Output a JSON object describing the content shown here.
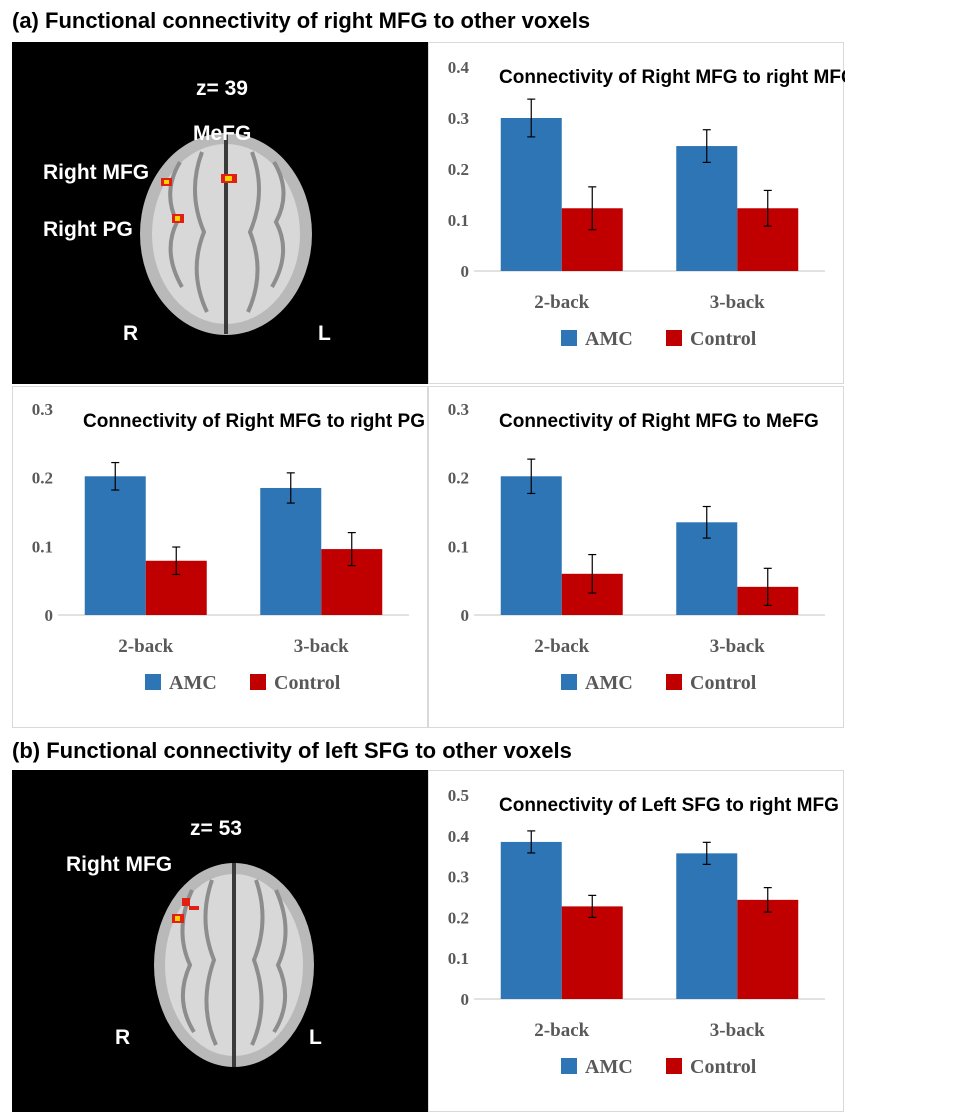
{
  "sections": {
    "a_title": "(a) Functional connectivity of right MFG to other voxels",
    "b_title": "(b) Functional connectivity of left SFG to other voxels"
  },
  "brain_a": {
    "slice": "z= 39",
    "labels": [
      "MeFG",
      "Right MFG",
      "Right PG"
    ],
    "left_side": "R",
    "right_side": "L"
  },
  "brain_b": {
    "slice": "z= 53",
    "labels": [
      "Right MFG"
    ],
    "left_side": "R",
    "right_side": "L"
  },
  "colors": {
    "amc": "#2e75b6",
    "control": "#c00000",
    "axis": "#d9d9d9",
    "tick": "#595959"
  },
  "chart_data": [
    {
      "id": "chart-a1",
      "type": "bar",
      "title": "Connectivity of Right MFG to right MFG",
      "categories": [
        "2-back",
        "3-back"
      ],
      "series": [
        {
          "name": "AMC",
          "values": [
            0.3,
            0.245
          ],
          "errors": [
            0.037,
            0.032
          ]
        },
        {
          "name": "Control",
          "values": [
            0.123,
            0.123
          ],
          "errors": [
            0.042,
            0.035
          ]
        }
      ],
      "ylim": [
        0,
        0.4
      ],
      "yticks": [
        "0",
        "0.1",
        "0.2",
        "0.3",
        "0.4"
      ],
      "xlabel": "",
      "ylabel": "",
      "legend": "bottom"
    },
    {
      "id": "chart-a2",
      "type": "bar",
      "title": "Connectivity of Right MFG to right PG",
      "categories": [
        "2-back",
        "3-back"
      ],
      "series": [
        {
          "name": "AMC",
          "values": [
            0.202,
            0.185
          ],
          "errors": [
            0.02,
            0.022
          ]
        },
        {
          "name": "Control",
          "values": [
            0.079,
            0.096
          ],
          "errors": [
            0.02,
            0.024
          ]
        }
      ],
      "ylim": [
        0,
        0.3
      ],
      "yticks": [
        "0",
        "0.1",
        "0.2",
        "0.3"
      ],
      "xlabel": "",
      "ylabel": "",
      "legend": "bottom"
    },
    {
      "id": "chart-a3",
      "type": "bar",
      "title": "Connectivity of Right MFG to MeFG",
      "categories": [
        "2-back",
        "3-back"
      ],
      "series": [
        {
          "name": "AMC",
          "values": [
            0.202,
            0.135
          ],
          "errors": [
            0.025,
            0.023
          ]
        },
        {
          "name": "Control",
          "values": [
            0.06,
            0.041
          ],
          "errors": [
            0.028,
            0.027
          ]
        }
      ],
      "ylim": [
        0,
        0.3
      ],
      "yticks": [
        "0",
        "0.1",
        "0.2",
        "0.3"
      ],
      "xlabel": "",
      "ylabel": "",
      "legend": "bottom"
    },
    {
      "id": "chart-b1",
      "type": "bar",
      "title": "Connectivity of Left SFG to right MFG",
      "categories": [
        "2-back",
        "3-back"
      ],
      "series": [
        {
          "name": "AMC",
          "values": [
            0.385,
            0.357
          ],
          "errors": [
            0.027,
            0.027
          ]
        },
        {
          "name": "Control",
          "values": [
            0.227,
            0.243
          ],
          "errors": [
            0.027,
            0.03
          ]
        }
      ],
      "ylim": [
        0,
        0.5
      ],
      "yticks": [
        "0",
        "0.1",
        "0.2",
        "0.3",
        "0.4",
        "0.5"
      ],
      "xlabel": "",
      "ylabel": "",
      "legend": "bottom"
    }
  ]
}
